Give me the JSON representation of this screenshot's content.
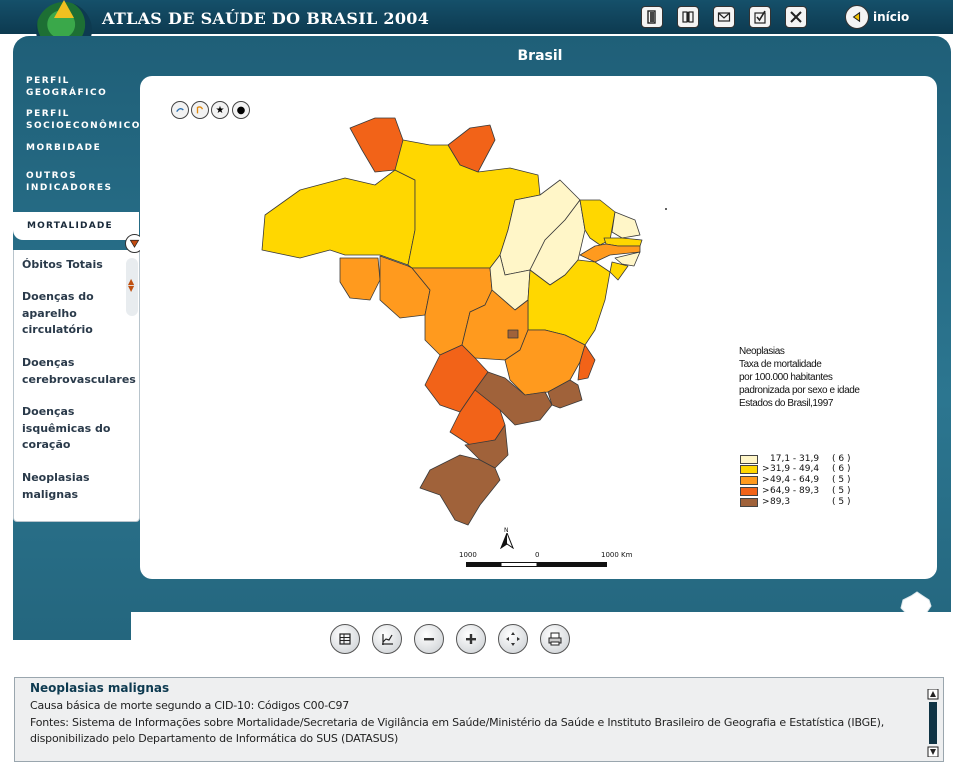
{
  "header": {
    "app_title": "ATLAS DE SAÚDE DO BRASIL 2004",
    "toolbar_icons": [
      "exit-door-icon",
      "book-icon",
      "mail-icon",
      "checklist-icon",
      "close-icon"
    ],
    "home_label": "início"
  },
  "frame": {
    "title": "Brasil"
  },
  "menu": {
    "items": [
      {
        "label": "PERFIL GEOGRÁFICO",
        "line1": "PERFIL",
        "line2": "GEOGRÁFICO"
      },
      {
        "label": "PERFIL SOCIOECONÔMICO",
        "line1": "PERFIL",
        "line2": "SOCIOECONÔMICO"
      },
      {
        "label": "MORBIDADE",
        "line1": "MORBIDADE",
        "line2": ""
      },
      {
        "label": "OUTROS INDICADORES",
        "line1": "OUTROS",
        "line2": "INDICADORES"
      }
    ],
    "active": "MORTALIDADE",
    "submenu": [
      {
        "lines": [
          "Óbitos Totais"
        ]
      },
      {
        "lines": [
          "Doenças do",
          "aparelho",
          "circulatório"
        ]
      },
      {
        "lines": [
          "Doenças",
          "cerebrovasculares"
        ]
      },
      {
        "lines": [
          "Doenças",
          "isquêmicas do",
          "coração"
        ]
      },
      {
        "lines": [
          "Neoplasias",
          "malignas"
        ]
      }
    ]
  },
  "map": {
    "tools": [
      "pan-icon",
      "measure-icon",
      "star-icon",
      "dot-icon"
    ],
    "legend_title": [
      "Neoplasias",
      "Taxa de mortalidade",
      "por 100.000 habitantes",
      "padronizada por sexo e idade",
      "Estados do Brasil,1997"
    ],
    "legend": [
      {
        "range": "17,1 - 31,9",
        "count": "( 6 )",
        "color": "#fff6c8",
        "prefix": ""
      },
      {
        "range": "31,9 - 49,4",
        "count": "( 6 )",
        "color": "#ffd700",
        "prefix": ">"
      },
      {
        "range": "49,4 - 64,9",
        "count": "( 5 )",
        "color": "#ff9a1e",
        "prefix": ">"
      },
      {
        "range": "64,9 - 89,3",
        "count": "( 5 )",
        "color": "#f26318",
        "prefix": ">"
      },
      {
        "range": "89,3",
        "count": "( 5 )",
        "color": "#a0623a",
        "prefix": ">"
      }
    ],
    "north": "N",
    "scale": {
      "left": "1000",
      "mid": "0",
      "right": "1000 Km"
    },
    "colors": {
      "c1": "#fff6c8",
      "c2": "#ffd700",
      "c3": "#ff9a1e",
      "c4": "#f26318",
      "c5": "#a0623a"
    }
  },
  "bottom_toolbar": [
    "table-icon",
    "chart-icon",
    "zoom-out-icon",
    "zoom-in-icon",
    "pan-arrows-icon",
    "print-icon"
  ],
  "info": {
    "title": "Neoplasias malignas",
    "line1": "Causa básica de morte segundo a CID-10: Códigos C00-C97",
    "line2": "Fontes: Sistema de Informações sobre Mortalidade/Secretaria de Vigilância em Saúde/Ministério da Saúde e Instituto Brasileiro de Geografia e Estatística (IBGE),",
    "line3": "disponibilizado pelo Departamento de Informática do SUS (DATASUS)"
  }
}
